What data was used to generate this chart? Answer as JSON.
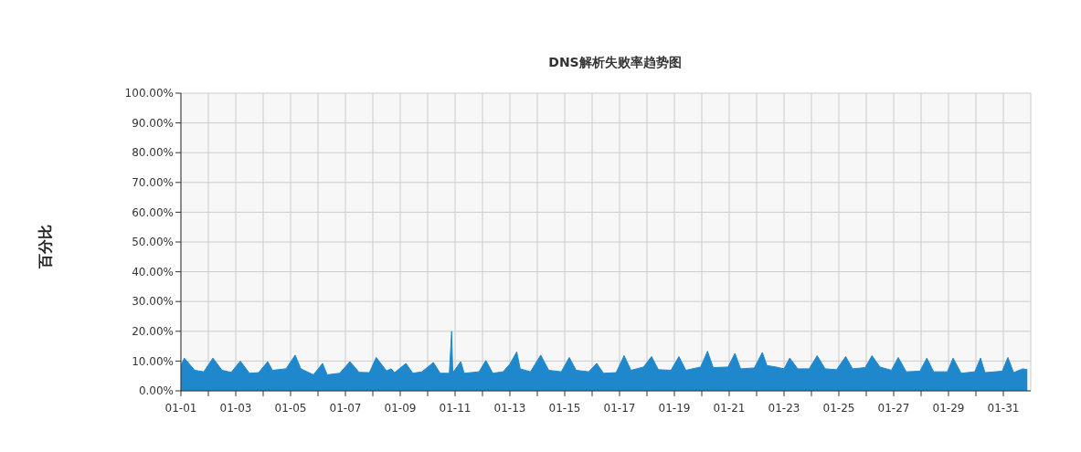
{
  "chart_data": {
    "type": "area",
    "title": "DNS解析失败率趋势图",
    "ylabel": "百分比",
    "xlim": [
      "--01-01",
      "--02-01"
    ],
    "xticks": [
      {
        "value": "--01-01",
        "label": "01-01"
      },
      {
        "value": "--01-02",
        "label": null
      },
      {
        "value": "--01-03",
        "label": "01-03"
      },
      {
        "value": "--01-04",
        "label": null
      },
      {
        "value": "--01-05",
        "label": "01-05"
      },
      {
        "value": "--01-06",
        "label": null
      },
      {
        "value": "--01-07",
        "label": "01-07"
      },
      {
        "value": "--01-08",
        "label": null
      },
      {
        "value": "--01-09",
        "label": "01-09"
      },
      {
        "value": "--01-10",
        "label": null
      },
      {
        "value": "--01-11",
        "label": "01-11"
      },
      {
        "value": "--01-12",
        "label": null
      },
      {
        "value": "--01-13",
        "label": "01-13"
      },
      {
        "value": "--01-14",
        "label": null
      },
      {
        "value": "--01-15",
        "label": "01-15"
      },
      {
        "value": "--01-16",
        "label": null
      },
      {
        "value": "--01-17",
        "label": "01-17"
      },
      {
        "value": "--01-18",
        "label": null
      },
      {
        "value": "--01-19",
        "label": "01-19"
      },
      {
        "value": "--01-20",
        "label": null
      },
      {
        "value": "--01-21",
        "label": "01-21"
      },
      {
        "value": "--01-22",
        "label": null
      },
      {
        "value": "--01-23",
        "label": "01-23"
      },
      {
        "value": "--01-24",
        "label": null
      },
      {
        "value": "--01-25",
        "label": "01-25"
      },
      {
        "value": "--01-26",
        "label": null
      },
      {
        "value": "--01-27",
        "label": "01-27"
      },
      {
        "value": "--01-28",
        "label": null
      },
      {
        "value": "--01-29",
        "label": "01-29"
      },
      {
        "value": "--01-30",
        "label": null
      },
      {
        "value": "--01-31",
        "label": "01-31"
      }
    ],
    "ylim": [
      0,
      100
    ],
    "yticks": [
      {
        "value": 0,
        "label": "0.00%"
      },
      {
        "value": 10,
        "label": "10.00%"
      },
      {
        "value": 20,
        "label": "20.00%"
      },
      {
        "value": 30,
        "label": "30.00%"
      },
      {
        "value": 40,
        "label": "40.00%"
      },
      {
        "value": 50,
        "label": "50.00%"
      },
      {
        "value": 60,
        "label": "60.00%"
      },
      {
        "value": 70,
        "label": "70.00%"
      },
      {
        "value": 80,
        "label": "80.00%"
      },
      {
        "value": 90,
        "label": "90.00%"
      },
      {
        "value": 100,
        "label": "100.00%"
      }
    ],
    "grid": true,
    "series": [
      {
        "color": "#1f88cc",
        "x": [
          "--01-01T00:00",
          "--01-01T03:00",
          "--01-01T12:00",
          "--01-01T20:00",
          "--01-02T04:00",
          "--01-02T12:00",
          "--01-02T20:00",
          "--01-03T04:00",
          "--01-03T12:00",
          "--01-03T20:00",
          "--01-04T04:00",
          "--01-04T08:00",
          "--01-04T20:00",
          "--01-05T04:00",
          "--01-05T09:00",
          "--01-05T20:00",
          "--01-06T04:00",
          "--01-06T08:00",
          "--01-06T19:00",
          "--01-07T04:00",
          "--01-07T12:00",
          "--01-07T21:00",
          "--01-08T03:00",
          "--01-08T12:00",
          "--01-08T16:00",
          "--01-08T19:00",
          "--01-09T05:00",
          "--01-09T11:00",
          "--01-09T19:00",
          "--01-10T05:00",
          "--01-10T11:00",
          "--01-10T19:00",
          "--01-10T21:00",
          "--01-10T22:00",
          "--01-11T05:00",
          "--01-11T08:00",
          "--01-11T21:00",
          "--01-12T03:00",
          "--01-12T09:00",
          "--01-12T18:00",
          "--01-13T00:00",
          "--01-13T06:00",
          "--01-13T09:00",
          "--01-13T18:00",
          "--01-14T03:00",
          "--01-14T10:00",
          "--01-14T21:00",
          "--01-15T04:00",
          "--01-15T10:00",
          "--01-15T21:00",
          "--01-16T04:00",
          "--01-16T10:00",
          "--01-16T21:00",
          "--01-17T04:00",
          "--01-17T10:00",
          "--01-17T21:00",
          "--01-18T04:00",
          "--01-18T10:00",
          "--01-18T21:00",
          "--01-19T04:00",
          "--01-19T10:00",
          "--01-19T23:00",
          "--01-20T05:00",
          "--01-20T10:00",
          "--01-20T23:00",
          "--01-21T05:00",
          "--01-21T10:00",
          "--01-21T22:00",
          "--01-22T05:00",
          "--01-22T09:00",
          "--01-22T17:00",
          "--01-23T00:00",
          "--01-23T05:00",
          "--01-23T12:00",
          "--01-23T22:00",
          "--01-24T05:00",
          "--01-24T12:00",
          "--01-24T22:00",
          "--01-25T06:00",
          "--01-25T12:00",
          "--01-25T23:00",
          "--01-26T05:00",
          "--01-26T12:00",
          "--01-26T22:00",
          "--01-27T04:00",
          "--01-27T11:00",
          "--01-27T23:00",
          "--01-28T05:00",
          "--01-28T11:00",
          "--01-28T23:00",
          "--01-29T04:00",
          "--01-29T11:00",
          "--01-29T23:00",
          "--01-30T04:00",
          "--01-30T08:00",
          "--01-30T23:00",
          "--01-31T04:00",
          "--01-31T09:00",
          "--01-31T17:00",
          "--01-31T21:00"
        ],
        "values": [
          8.5,
          11.0,
          6.9,
          6.4,
          11.0,
          6.9,
          6.2,
          10.0,
          5.9,
          6.1,
          9.8,
          6.9,
          7.4,
          12.0,
          7.4,
          5.4,
          9.2,
          5.4,
          5.9,
          9.8,
          6.2,
          6.1,
          11.2,
          6.7,
          7.4,
          6.1,
          9.2,
          5.9,
          6.4,
          9.5,
          5.9,
          5.9,
          20.0,
          6.1,
          9.8,
          5.9,
          6.4,
          10.2,
          5.9,
          6.4,
          9.0,
          13.1,
          7.4,
          6.4,
          12.0,
          6.9,
          6.4,
          11.2,
          6.9,
          6.4,
          9.2,
          5.9,
          6.1,
          11.8,
          6.9,
          8.0,
          11.5,
          7.1,
          6.9,
          11.5,
          6.9,
          8.0,
          13.3,
          7.8,
          8.0,
          12.6,
          7.4,
          7.7,
          12.9,
          8.5,
          8.0,
          7.4,
          11.0,
          7.4,
          7.4,
          11.8,
          7.4,
          7.1,
          11.5,
          7.4,
          7.8,
          11.8,
          8.0,
          6.9,
          11.2,
          6.4,
          6.6,
          11.0,
          6.4,
          6.4,
          11.0,
          5.9,
          6.4,
          11.0,
          6.1,
          6.6,
          11.2,
          6.1,
          7.4,
          7.1
        ]
      }
    ]
  }
}
